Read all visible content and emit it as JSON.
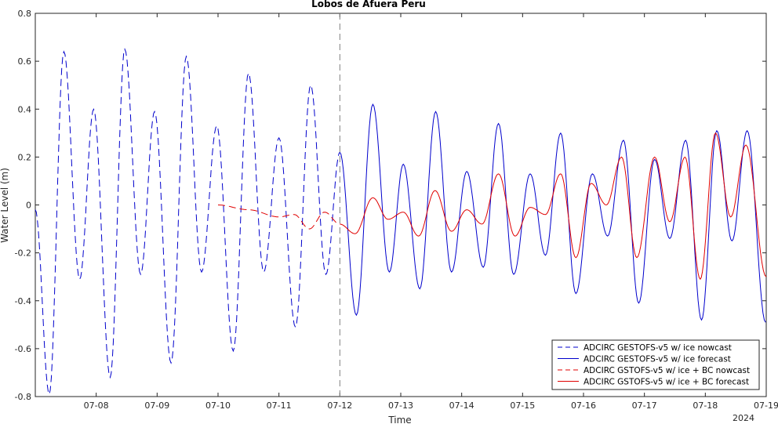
{
  "chart_data": {
    "type": "line",
    "title": "Lobos de Afuera Peru",
    "xlabel": "Time",
    "ylabel": "Water Level (m)",
    "year_label": "2024",
    "xlim": [
      "2024-07-07",
      "2024-07-19"
    ],
    "ylim": [
      -0.8,
      0.8
    ],
    "x_ticks": [
      "07-08",
      "07-09",
      "07-10",
      "07-11",
      "07-12",
      "07-13",
      "07-14",
      "07-15",
      "07-16",
      "07-17",
      "07-18",
      "07-19"
    ],
    "y_ticks": [
      "-0.8",
      "-0.6",
      "-0.4",
      "-0.2",
      "0",
      "0.2",
      "0.4",
      "0.6",
      "0.8"
    ],
    "nowcast_forecast_divider": "2024-07-12",
    "legend_position": "bottom-right",
    "colors": {
      "gestofs": "#0000cc",
      "gstofs_bc": "#e00000",
      "divider": "#808080"
    },
    "series": [
      {
        "name": "ADCIRC GESTOFS-v5 w/ ice nowcast",
        "style": "dashed",
        "color": "#0000cc",
        "points": [
          [
            "07-07 00:00",
            -0.02
          ],
          [
            "07-07 05:30",
            -0.79
          ],
          [
            "07-07 11:15",
            0.64
          ],
          [
            "07-07 17:30",
            -0.31
          ],
          [
            "07-07 23:00",
            0.4
          ],
          [
            "07-08 05:30",
            -0.72
          ],
          [
            "07-08 11:15",
            0.65
          ],
          [
            "07-08 17:30",
            -0.29
          ],
          [
            "07-08 23:00",
            0.39
          ],
          [
            "07-09 05:30",
            -0.66
          ],
          [
            "07-09 11:30",
            0.62
          ],
          [
            "07-09 17:30",
            -0.28
          ],
          [
            "07-09 23:30",
            0.33
          ],
          [
            "07-10 06:00",
            -0.61
          ],
          [
            "07-10 12:00",
            0.55
          ],
          [
            "07-10 18:00",
            -0.28
          ],
          [
            "07-11 00:00",
            0.28
          ],
          [
            "07-11 06:30",
            -0.51
          ],
          [
            "07-11 12:30",
            0.5
          ],
          [
            "07-11 18:30",
            -0.29
          ],
          [
            "07-12 00:00",
            0.22
          ]
        ]
      },
      {
        "name": "ADCIRC GESTOFS-v5 w/ ice forecast",
        "style": "solid",
        "color": "#0000cc",
        "points": [
          [
            "07-12 00:00",
            0.22
          ],
          [
            "07-12 06:30",
            -0.46
          ],
          [
            "07-12 13:00",
            0.42
          ],
          [
            "07-12 19:30",
            -0.28
          ],
          [
            "07-13 01:00",
            0.17
          ],
          [
            "07-13 07:30",
            -0.35
          ],
          [
            "07-13 13:45",
            0.39
          ],
          [
            "07-13 20:00",
            -0.28
          ],
          [
            "07-14 02:00",
            0.14
          ],
          [
            "07-14 08:30",
            -0.26
          ],
          [
            "07-14 14:30",
            0.34
          ],
          [
            "07-14 20:30",
            -0.29
          ],
          [
            "07-15 03:00",
            0.13
          ],
          [
            "07-15 09:00",
            -0.21
          ],
          [
            "07-15 15:00",
            0.3
          ],
          [
            "07-15 21:00",
            -0.37
          ],
          [
            "07-16 03:30",
            0.13
          ],
          [
            "07-16 09:30",
            -0.13
          ],
          [
            "07-16 15:45",
            0.27
          ],
          [
            "07-16 21:45",
            -0.41
          ],
          [
            "07-17 04:00",
            0.19
          ],
          [
            "07-17 10:00",
            -0.14
          ],
          [
            "07-17 16:15",
            0.27
          ],
          [
            "07-17 22:30",
            -0.48
          ],
          [
            "07-18 04:30",
            0.31
          ],
          [
            "07-18 10:30",
            -0.15
          ],
          [
            "07-18 16:30",
            0.31
          ],
          [
            "07-18 23:45",
            -0.49
          ]
        ]
      },
      {
        "name": "ADCIRC GSTOFS-v5 w/ ice + BC nowcast",
        "style": "dashed",
        "color": "#e00000",
        "points": [
          [
            "07-10 00:00",
            0.0
          ],
          [
            "07-10 12:00",
            -0.02
          ],
          [
            "07-11 00:00",
            -0.05
          ],
          [
            "07-11 06:00",
            -0.04
          ],
          [
            "07-11 12:00",
            -0.1
          ],
          [
            "07-11 18:00",
            -0.03
          ],
          [
            "07-12 00:00",
            -0.08
          ]
        ]
      },
      {
        "name": "ADCIRC GSTOFS-v5 w/ ice + BC forecast",
        "style": "solid",
        "color": "#e00000",
        "points": [
          [
            "07-12 00:00",
            -0.08
          ],
          [
            "07-12 06:00",
            -0.12
          ],
          [
            "07-12 13:00",
            0.03
          ],
          [
            "07-12 19:00",
            -0.06
          ],
          [
            "07-13 01:00",
            -0.03
          ],
          [
            "07-13 07:00",
            -0.13
          ],
          [
            "07-13 13:30",
            0.06
          ],
          [
            "07-13 20:00",
            -0.11
          ],
          [
            "07-14 02:00",
            -0.02
          ],
          [
            "07-14 08:00",
            -0.08
          ],
          [
            "07-14 14:30",
            0.13
          ],
          [
            "07-14 21:00",
            -0.13
          ],
          [
            "07-15 03:00",
            -0.01
          ],
          [
            "07-15 09:00",
            -0.04
          ],
          [
            "07-15 15:00",
            0.13
          ],
          [
            "07-15 21:00",
            -0.22
          ],
          [
            "07-16 03:00",
            0.09
          ],
          [
            "07-16 09:00",
            0.0
          ],
          [
            "07-16 15:00",
            0.2
          ],
          [
            "07-16 21:00",
            -0.22
          ],
          [
            "07-17 04:00",
            0.2
          ],
          [
            "07-17 10:00",
            -0.07
          ],
          [
            "07-17 16:00",
            0.2
          ],
          [
            "07-17 22:00",
            -0.31
          ],
          [
            "07-18 04:00",
            0.3
          ],
          [
            "07-18 10:00",
            -0.05
          ],
          [
            "07-18 16:00",
            0.25
          ],
          [
            "07-19 00:00",
            -0.3
          ]
        ]
      }
    ]
  }
}
